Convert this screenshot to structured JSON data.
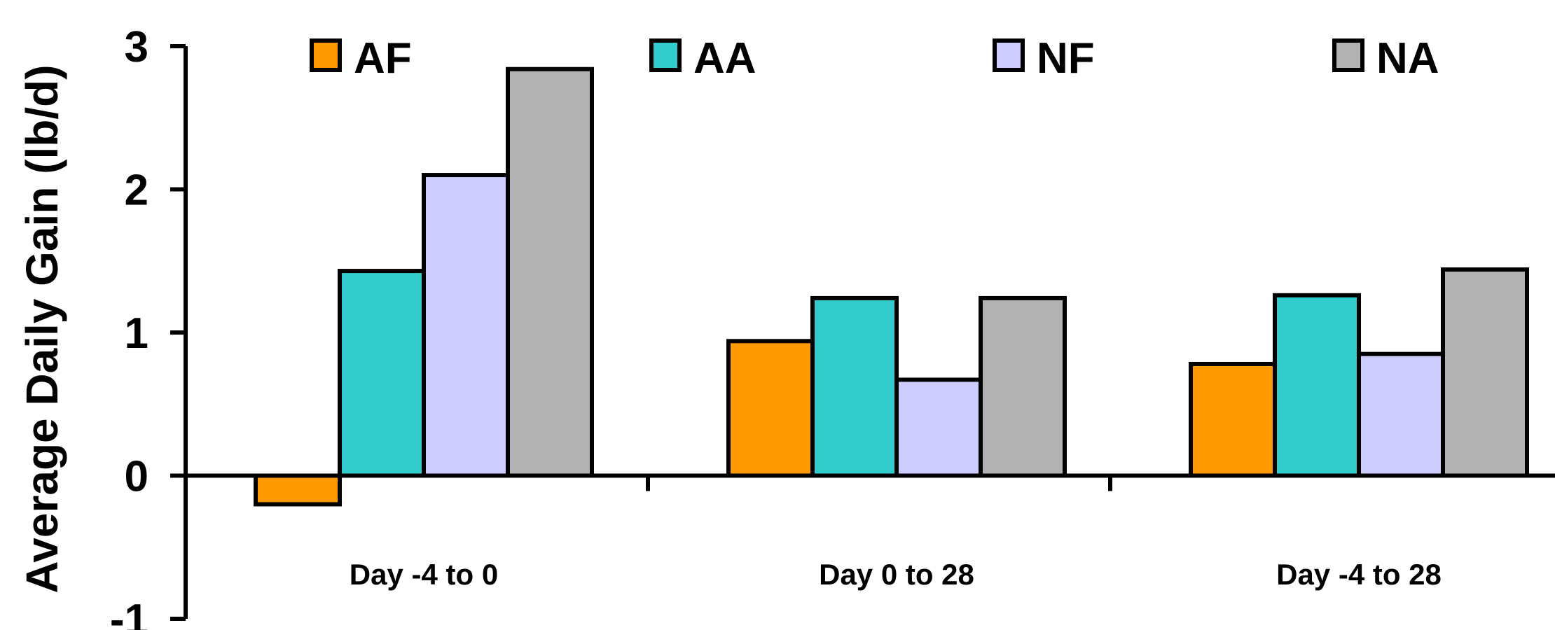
{
  "chart_data": {
    "type": "bar",
    "title": "",
    "xlabel": "",
    "ylabel": "Average Daily Gain (lb/d)",
    "ylim": [
      -1,
      3
    ],
    "yticks": [
      "-1",
      "0",
      "1",
      "2",
      "3"
    ],
    "grid": false,
    "legend_position": "top",
    "categories": [
      "Day -4 to 0",
      "Day 0 to 28",
      "Day -4 to 28"
    ],
    "series": [
      {
        "name": "AF",
        "color": "#FF9900",
        "values": [
          -0.2,
          0.94,
          0.78
        ]
      },
      {
        "name": "AA",
        "color": "#33CCCC",
        "values": [
          1.43,
          1.24,
          1.26
        ]
      },
      {
        "name": "NF",
        "color": "#CCCCFF",
        "values": [
          2.1,
          0.67,
          0.85
        ]
      },
      {
        "name": "NA",
        "color": "#B2B2B2",
        "values": [
          2.84,
          1.24,
          1.44
        ]
      }
    ]
  }
}
